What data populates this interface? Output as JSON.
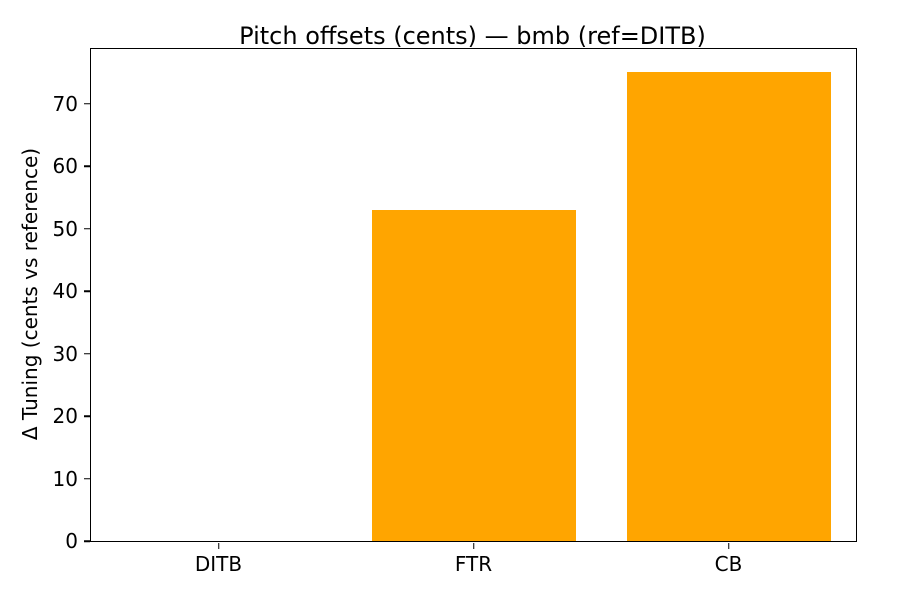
{
  "chart_data": {
    "type": "bar",
    "title": "Pitch offsets (cents) — bmb (ref=DITB)",
    "categories": [
      "DITB",
      "FTR",
      "CB"
    ],
    "values": [
      0,
      53,
      75
    ],
    "xlabel": "",
    "ylabel": "Δ Tuning (cents vs reference)",
    "ylim": [
      0,
      78.75
    ],
    "yticks": [
      0,
      10,
      20,
      30,
      40,
      50,
      60,
      70
    ],
    "bar_color": "#ffa500",
    "bar_width_fraction": 0.8,
    "grid": false,
    "legend_position": "none",
    "background_color": "#ffffff",
    "axis_color": "#000000"
  }
}
